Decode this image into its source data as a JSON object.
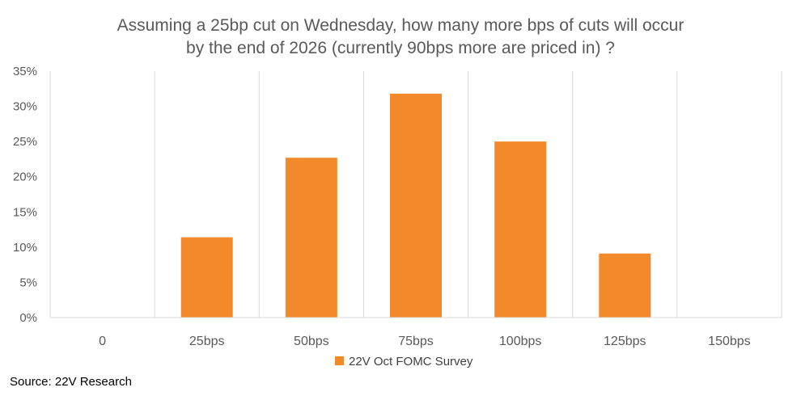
{
  "chart_data": {
    "type": "bar",
    "title_lines": [
      "Assuming a 25bp cut on Wednesday, how many more bps of cuts will occur",
      "by the end of 2026 (currently 90bps more are priced in) ?"
    ],
    "categories": [
      "0",
      "25bps",
      "50bps",
      "75bps",
      "100bps",
      "125bps",
      "150bps"
    ],
    "series": [
      {
        "name": "22V Oct FOMC Survey",
        "values": [
          0,
          11.4,
          22.7,
          31.8,
          25.0,
          9.1,
          0
        ],
        "color": "#F28A2B"
      }
    ],
    "ylim": [
      0,
      35
    ],
    "y_ticks": [
      0,
      5,
      10,
      15,
      20,
      25,
      30,
      35
    ],
    "y_tick_labels": [
      "0%",
      "5%",
      "10%",
      "15%",
      "20%",
      "25%",
      "30%",
      "35%"
    ],
    "grid": "vertical separators between categories",
    "legend_position": "bottom-center",
    "source": "Source: 22V Research"
  }
}
